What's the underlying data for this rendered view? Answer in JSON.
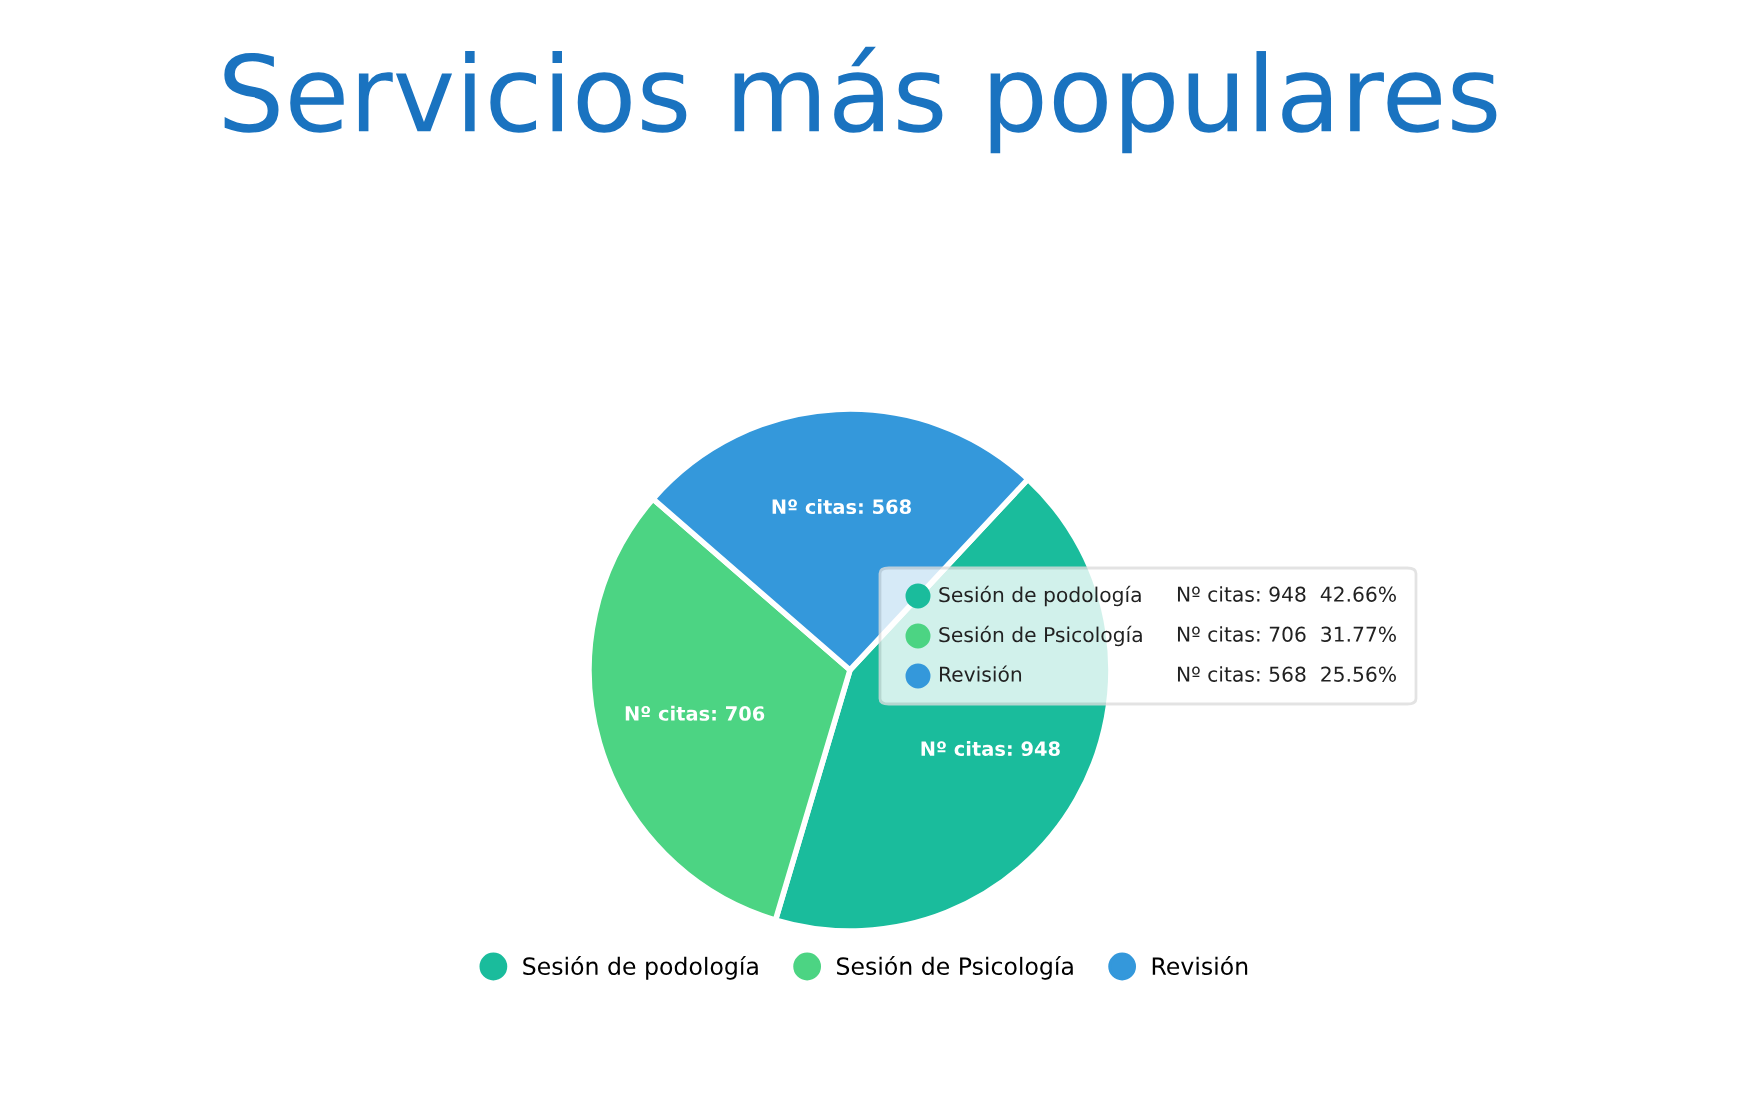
{
  "chart_data": {
    "type": "pie",
    "title": "Servicios más populares",
    "categories": [
      "Sesión de podología",
      "Sesión de Psicología",
      "Revisión"
    ],
    "values": [
      948,
      706,
      568
    ],
    "colors": [
      "#1abc9c",
      "#4cd483",
      "#3498db"
    ],
    "value_labels": [
      "Nº citas: 948",
      "Nº citas: 706",
      "Nº citas: 568"
    ],
    "annotations": [
      "Nº citas: 948  42.66%",
      "Nº citas: 706  31.77%",
      "Nº citas: 568  25.56%"
    ],
    "legend": "bottom"
  }
}
